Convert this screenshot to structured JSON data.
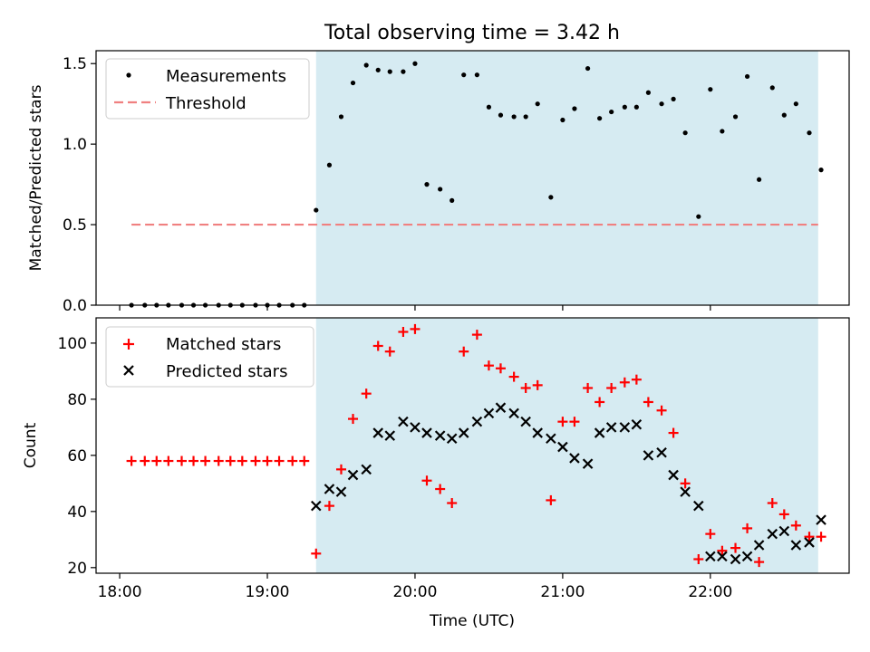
{
  "figure": {
    "title": "Total observing time = 3.42 h",
    "xlabel": "Time (UTC)",
    "x_ticks": [
      "18:00",
      "19:00",
      "20:00",
      "21:00",
      "22:00"
    ],
    "x_tick_hours": [
      18,
      19,
      20,
      21,
      22
    ],
    "x_range_hours": [
      17.84,
      22.94
    ],
    "shaded_span_hours": [
      19.33,
      22.73
    ],
    "colors": {
      "measurements": "#000000",
      "threshold": "#f08080",
      "matched": "#ff0000",
      "predicted": "#000000",
      "shade": "#add8e6"
    }
  },
  "chart_data": [
    {
      "type": "scatter",
      "ylabel": "Matched/Predicted stars",
      "ylim": [
        0,
        1.58
      ],
      "y_ticks": [
        0.0,
        0.5,
        1.0,
        1.5
      ],
      "y_tick_labels": [
        "0.0",
        "0.5",
        "1.0",
        "1.5"
      ],
      "legend_placement": "top-left",
      "threshold": {
        "name": "Threshold",
        "value": 0.5,
        "x_from": 18.08,
        "x_to": 22.73
      },
      "series": [
        {
          "name": "Measurements",
          "x": [
            18.08,
            18.17,
            18.25,
            18.33,
            18.42,
            18.5,
            18.58,
            18.67,
            18.75,
            18.83,
            18.92,
            19.0,
            19.08,
            19.17,
            19.25,
            19.33,
            19.42,
            19.5,
            19.58,
            19.67,
            19.75,
            19.83,
            19.92,
            20.0,
            20.08,
            20.17,
            20.25,
            20.33,
            20.42,
            20.5,
            20.58,
            20.67,
            20.75,
            20.83,
            20.92,
            21.0,
            21.08,
            21.17,
            21.25,
            21.33,
            21.42,
            21.5,
            21.58,
            21.67,
            21.75,
            21.83,
            21.92,
            22.0,
            22.08,
            22.17,
            22.25,
            22.33,
            22.42,
            22.5,
            22.58,
            22.67,
            22.75
          ],
          "y": [
            0,
            0,
            0,
            0,
            0,
            0,
            0,
            0,
            0,
            0,
            0,
            0,
            0,
            0,
            0,
            0.59,
            0.87,
            1.17,
            1.38,
            1.49,
            1.46,
            1.45,
            1.45,
            1.5,
            0.75,
            0.72,
            0.65,
            1.43,
            1.43,
            1.23,
            1.18,
            1.17,
            1.17,
            1.25,
            0.67,
            1.15,
            1.22,
            1.47,
            1.16,
            1.2,
            1.23,
            1.23,
            1.32,
            1.25,
            1.28,
            1.07,
            0.55,
            1.34,
            1.08,
            1.17,
            1.42,
            0.78,
            1.35,
            1.18,
            1.25,
            1.07,
            0.84
          ]
        }
      ]
    },
    {
      "type": "scatter",
      "ylabel": "Count",
      "ylim": [
        18,
        109
      ],
      "y_ticks": [
        20,
        40,
        60,
        80,
        100
      ],
      "y_tick_labels": [
        "20",
        "40",
        "60",
        "80",
        "100"
      ],
      "legend_placement": "top-left",
      "series": [
        {
          "name": "Matched stars",
          "marker": "plus",
          "x": [
            18.08,
            18.17,
            18.25,
            18.33,
            18.42,
            18.5,
            18.58,
            18.67,
            18.75,
            18.83,
            18.92,
            19.0,
            19.08,
            19.17,
            19.25,
            19.33,
            19.42,
            19.5,
            19.58,
            19.67,
            19.75,
            19.83,
            19.92,
            20.0,
            20.08,
            20.17,
            20.25,
            20.33,
            20.42,
            20.5,
            20.58,
            20.67,
            20.75,
            20.83,
            20.92,
            21.0,
            21.08,
            21.17,
            21.25,
            21.33,
            21.42,
            21.5,
            21.58,
            21.67,
            21.75,
            21.83,
            21.92,
            22.0,
            22.08,
            22.17,
            22.25,
            22.33,
            22.42,
            22.5,
            22.58,
            22.67,
            22.75
          ],
          "y": [
            58,
            58,
            58,
            58,
            58,
            58,
            58,
            58,
            58,
            58,
            58,
            58,
            58,
            58,
            58,
            25,
            42,
            55,
            73,
            82,
            99,
            97,
            104,
            105,
            51,
            48,
            43,
            97,
            103,
            92,
            91,
            88,
            84,
            85,
            44,
            72,
            72,
            84,
            79,
            84,
            86,
            87,
            79,
            76,
            68,
            50,
            23,
            32,
            26,
            27,
            34,
            22,
            43,
            39,
            35,
            31,
            31
          ]
        },
        {
          "name": "Predicted stars",
          "marker": "x",
          "x": [
            19.33,
            19.42,
            19.5,
            19.58,
            19.67,
            19.75,
            19.83,
            19.92,
            20.0,
            20.08,
            20.17,
            20.25,
            20.33,
            20.42,
            20.5,
            20.58,
            20.67,
            20.75,
            20.83,
            20.92,
            21.0,
            21.08,
            21.17,
            21.25,
            21.33,
            21.42,
            21.5,
            21.58,
            21.67,
            21.75,
            21.83,
            21.92,
            22.0,
            22.08,
            22.17,
            22.25,
            22.33,
            22.42,
            22.5,
            22.58,
            22.67,
            22.75
          ],
          "y": [
            42,
            48,
            47,
            53,
            55,
            68,
            67,
            72,
            70,
            68,
            67,
            66,
            68,
            72,
            75,
            77,
            75,
            72,
            68,
            66,
            63,
            59,
            57,
            68,
            70,
            70,
            71,
            60,
            61,
            53,
            47,
            42,
            24,
            24,
            23,
            24,
            28,
            32,
            33,
            28,
            29,
            37
          ]
        }
      ]
    }
  ]
}
